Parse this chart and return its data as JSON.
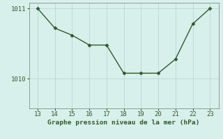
{
  "x": [
    13,
    14,
    15,
    16,
    17,
    18,
    19,
    20,
    21,
    22,
    23
  ],
  "y": [
    1011.0,
    1010.72,
    1010.62,
    1010.48,
    1010.48,
    1010.08,
    1010.08,
    1010.08,
    1010.28,
    1010.78,
    1011.0
  ],
  "line_color": "#2d5a2d",
  "marker": "D",
  "marker_size": 2.5,
  "line_width": 1.0,
  "background_color": "#d8f0eb",
  "grid_color": "#b8d8d0",
  "xlabel": "Graphe pression niveau de la mer (hPa)",
  "xlabel_color": "#2d5a2d",
  "xlabel_fontsize": 6.8,
  "tick_color": "#2d5a2d",
  "tick_fontsize": 6.5,
  "xlim": [
    12.5,
    23.5
  ],
  "ylim": [
    1009.58,
    1011.08
  ],
  "yticks": [
    1010,
    1011
  ],
  "xticks": [
    13,
    14,
    15,
    16,
    17,
    18,
    19,
    20,
    21,
    22,
    23
  ],
  "spine_color": "#888888"
}
